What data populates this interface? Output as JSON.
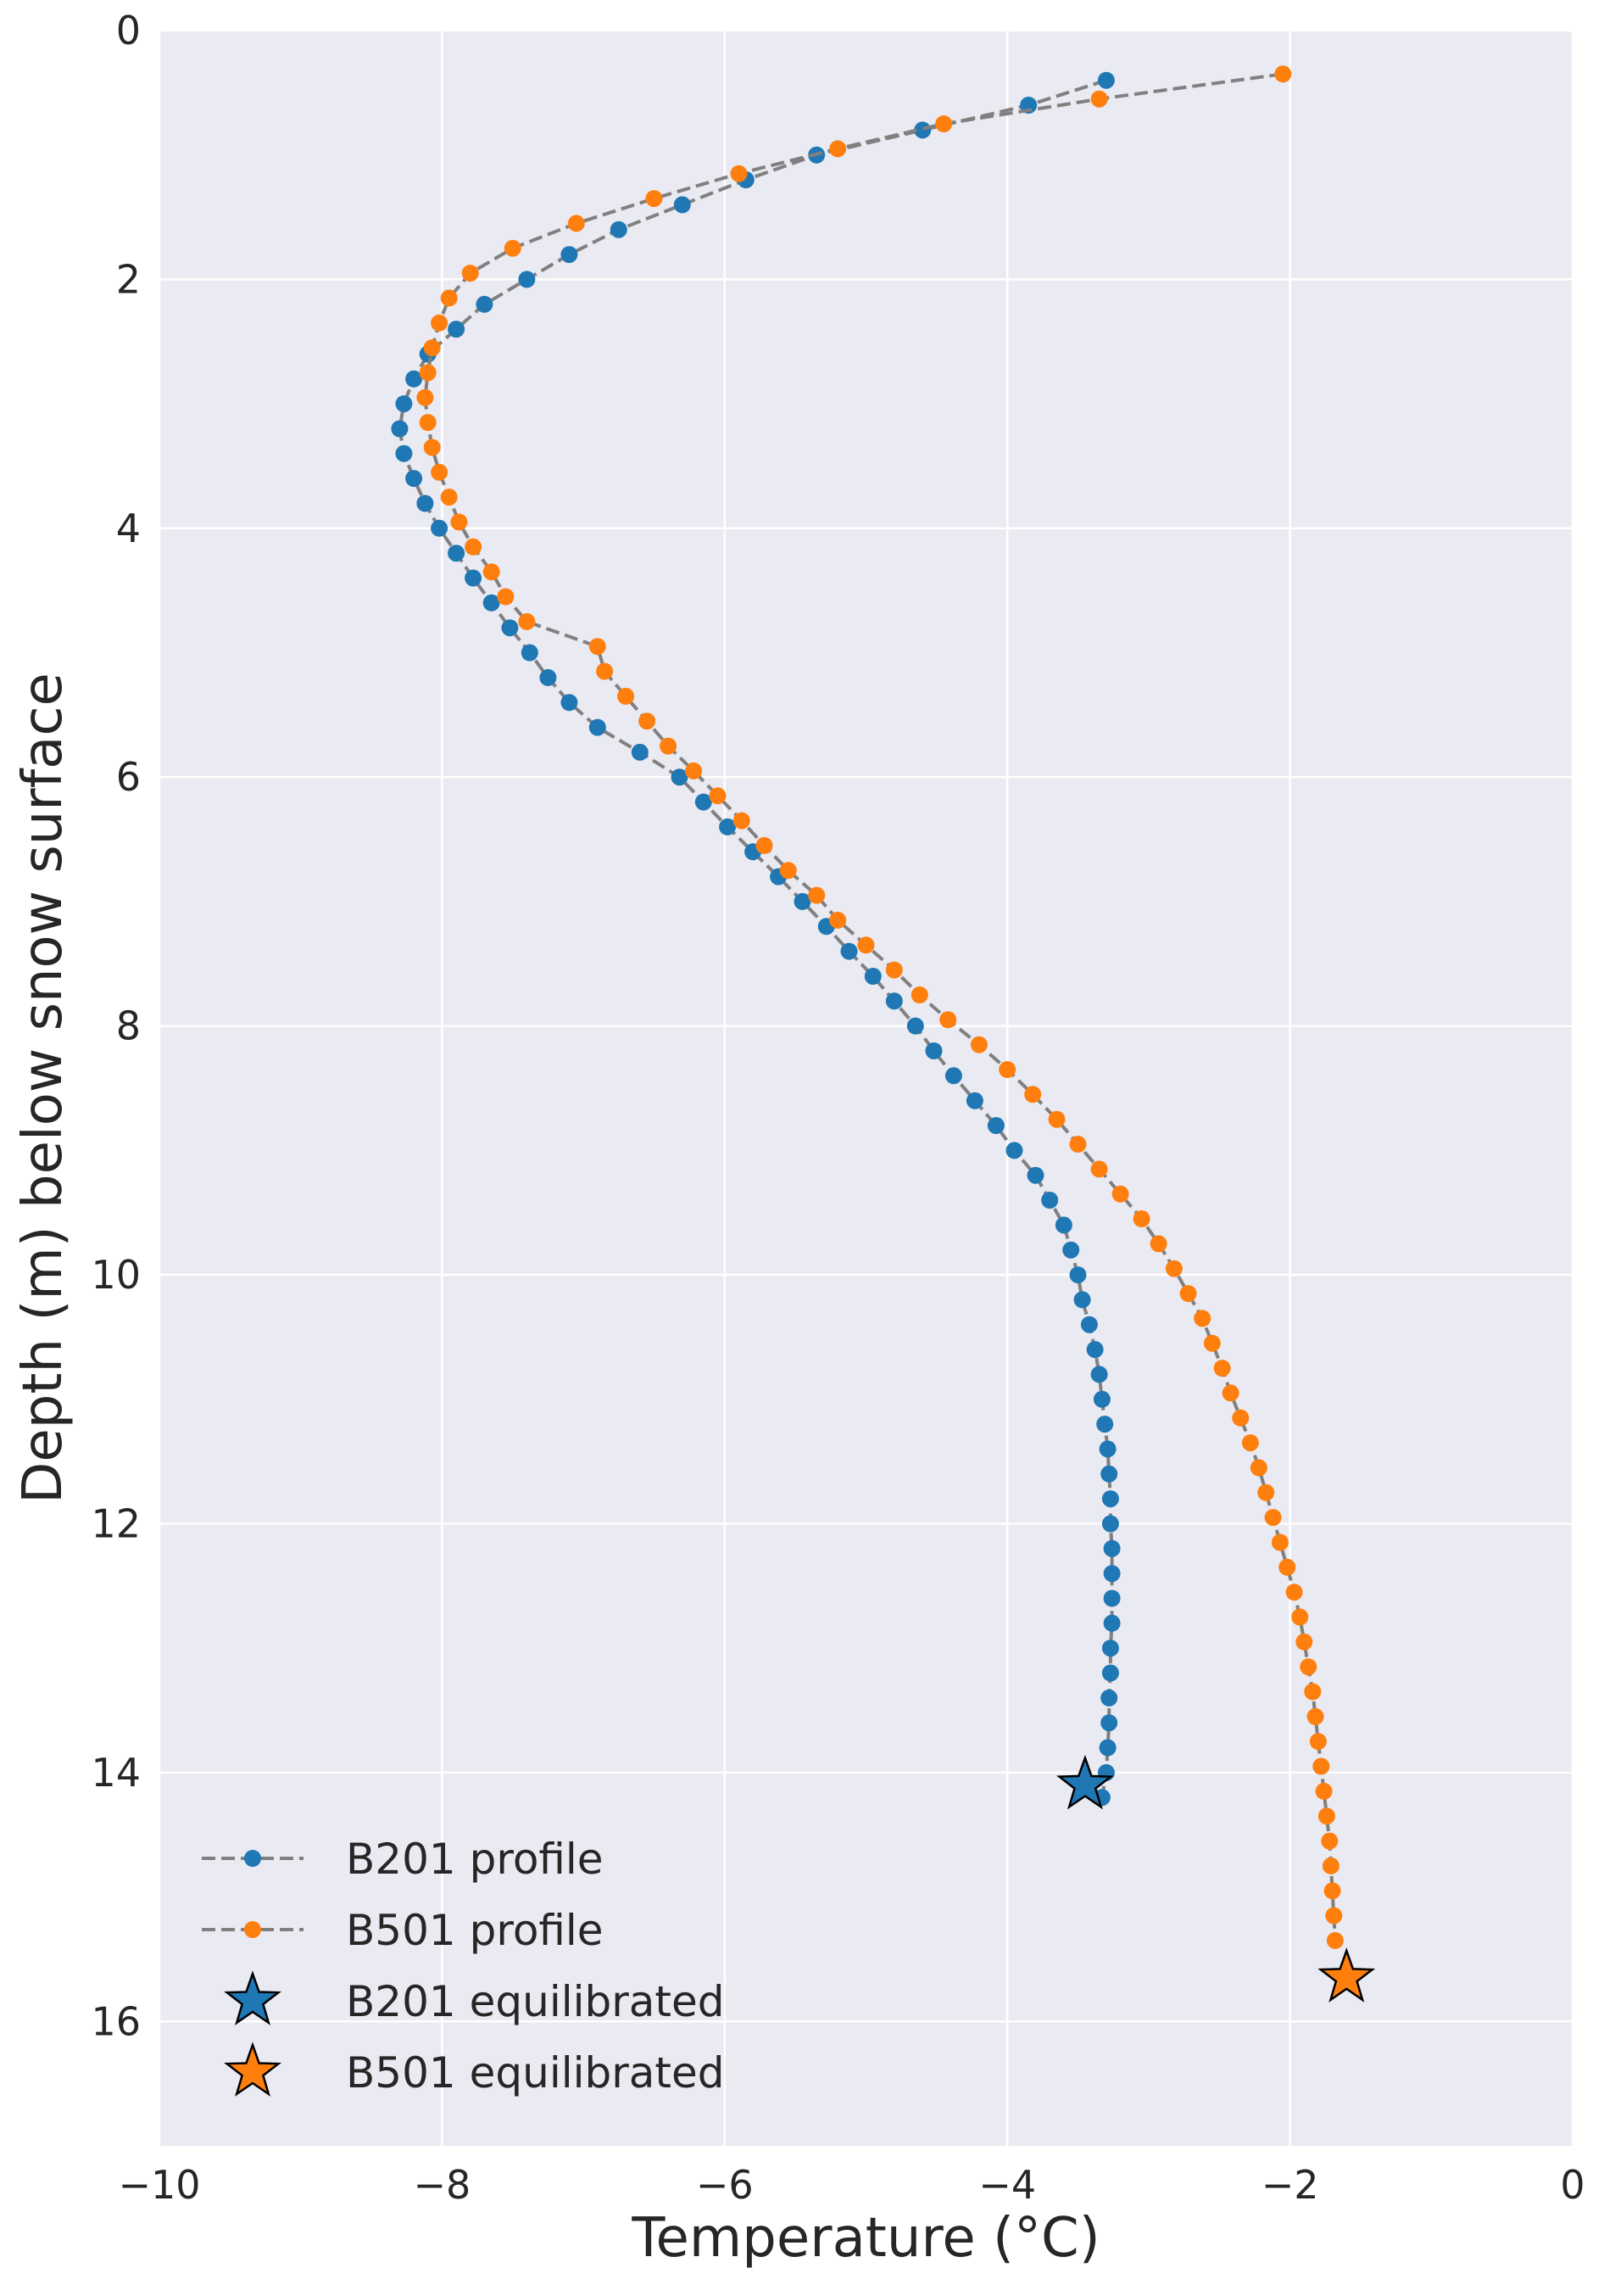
{
  "chart_data": {
    "type": "line",
    "title": "",
    "xlabel": "Temperature (°C)",
    "ylabel": "Depth (m) below snow surface",
    "xlim": [
      -10,
      0
    ],
    "ylim": [
      17,
      0
    ],
    "y_inverted": true,
    "grid": true,
    "legend_position": "lower-left",
    "x_ticks": [
      "−10",
      "−8",
      "−6",
      "−4",
      "−2",
      "0"
    ],
    "x_tick_values": [
      -10,
      -8,
      -6,
      -4,
      -2,
      0
    ],
    "y_ticks": [
      "0",
      "2",
      "4",
      "6",
      "8",
      "10",
      "12",
      "14",
      "16"
    ],
    "y_tick_values": [
      0,
      2,
      4,
      6,
      8,
      10,
      12,
      14,
      16
    ],
    "colors": {
      "background": "#eaeaf2",
      "grid": "#ffffff",
      "line": "#808080",
      "b201": "#1f77b4",
      "b501": "#ff7f0e",
      "star_edge": "#000000"
    },
    "series": [
      {
        "name": "B201 profile",
        "color": "#1f77b4",
        "line_style": "dashed",
        "marker": "circle",
        "points": [
          [
            -3.3,
            0.4
          ],
          [
            -3.85,
            0.6
          ],
          [
            -4.6,
            0.8
          ],
          [
            -5.35,
            1.0
          ],
          [
            -5.85,
            1.2
          ],
          [
            -6.3,
            1.4
          ],
          [
            -6.75,
            1.6
          ],
          [
            -7.1,
            1.8
          ],
          [
            -7.4,
            2.0
          ],
          [
            -7.7,
            2.2
          ],
          [
            -7.9,
            2.4
          ],
          [
            -8.1,
            2.6
          ],
          [
            -8.2,
            2.8
          ],
          [
            -8.27,
            3.0
          ],
          [
            -8.3,
            3.2
          ],
          [
            -8.27,
            3.4
          ],
          [
            -8.2,
            3.6
          ],
          [
            -8.12,
            3.8
          ],
          [
            -8.02,
            4.0
          ],
          [
            -7.9,
            4.2
          ],
          [
            -7.78,
            4.4
          ],
          [
            -7.65,
            4.6
          ],
          [
            -7.52,
            4.8
          ],
          [
            -7.38,
            5.0
          ],
          [
            -7.25,
            5.2
          ],
          [
            -7.1,
            5.4
          ],
          [
            -6.9,
            5.6
          ],
          [
            -6.6,
            5.8
          ],
          [
            -6.32,
            6.0
          ],
          [
            -6.15,
            6.2
          ],
          [
            -5.98,
            6.4
          ],
          [
            -5.8,
            6.6
          ],
          [
            -5.62,
            6.8
          ],
          [
            -5.45,
            7.0
          ],
          [
            -5.28,
            7.2
          ],
          [
            -5.12,
            7.4
          ],
          [
            -4.95,
            7.6
          ],
          [
            -4.8,
            7.8
          ],
          [
            -4.65,
            8.0
          ],
          [
            -4.52,
            8.2
          ],
          [
            -4.38,
            8.4
          ],
          [
            -4.23,
            8.6
          ],
          [
            -4.08,
            8.8
          ],
          [
            -3.95,
            9.0
          ],
          [
            -3.8,
            9.2
          ],
          [
            -3.7,
            9.4
          ],
          [
            -3.6,
            9.6
          ],
          [
            -3.55,
            9.8
          ],
          [
            -3.5,
            10.0
          ],
          [
            -3.47,
            10.2
          ],
          [
            -3.42,
            10.4
          ],
          [
            -3.38,
            10.6
          ],
          [
            -3.35,
            10.8
          ],
          [
            -3.33,
            11.0
          ],
          [
            -3.31,
            11.2
          ],
          [
            -3.29,
            11.4
          ],
          [
            -3.28,
            11.6
          ],
          [
            -3.27,
            11.8
          ],
          [
            -3.27,
            12.0
          ],
          [
            -3.26,
            12.2
          ],
          [
            -3.26,
            12.4
          ],
          [
            -3.26,
            12.6
          ],
          [
            -3.26,
            12.8
          ],
          [
            -3.27,
            13.0
          ],
          [
            -3.27,
            13.2
          ],
          [
            -3.28,
            13.4
          ],
          [
            -3.28,
            13.6
          ],
          [
            -3.29,
            13.8
          ],
          [
            -3.3,
            14.0
          ],
          [
            -3.33,
            14.2
          ]
        ]
      },
      {
        "name": "B501 profile",
        "color": "#ff7f0e",
        "line_style": "dashed",
        "marker": "circle",
        "points": [
          [
            -2.05,
            0.35
          ],
          [
            -3.35,
            0.55
          ],
          [
            -4.45,
            0.75
          ],
          [
            -5.2,
            0.95
          ],
          [
            -5.9,
            1.15
          ],
          [
            -6.5,
            1.35
          ],
          [
            -7.05,
            1.55
          ],
          [
            -7.5,
            1.75
          ],
          [
            -7.8,
            1.95
          ],
          [
            -7.95,
            2.15
          ],
          [
            -8.02,
            2.35
          ],
          [
            -8.07,
            2.55
          ],
          [
            -8.1,
            2.75
          ],
          [
            -8.12,
            2.95
          ],
          [
            -8.1,
            3.15
          ],
          [
            -8.07,
            3.35
          ],
          [
            -8.02,
            3.55
          ],
          [
            -7.95,
            3.75
          ],
          [
            -7.88,
            3.95
          ],
          [
            -7.78,
            4.15
          ],
          [
            -7.65,
            4.35
          ],
          [
            -7.55,
            4.55
          ],
          [
            -7.4,
            4.75
          ],
          [
            -6.9,
            4.95
          ],
          [
            -6.85,
            5.15
          ],
          [
            -6.7,
            5.35
          ],
          [
            -6.55,
            5.55
          ],
          [
            -6.4,
            5.75
          ],
          [
            -6.22,
            5.95
          ],
          [
            -6.05,
            6.15
          ],
          [
            -5.88,
            6.35
          ],
          [
            -5.72,
            6.55
          ],
          [
            -5.55,
            6.75
          ],
          [
            -5.35,
            6.95
          ],
          [
            -5.2,
            7.15
          ],
          [
            -5.0,
            7.35
          ],
          [
            -4.8,
            7.55
          ],
          [
            -4.62,
            7.75
          ],
          [
            -4.42,
            7.95
          ],
          [
            -4.2,
            8.15
          ],
          [
            -4.0,
            8.35
          ],
          [
            -3.82,
            8.55
          ],
          [
            -3.65,
            8.75
          ],
          [
            -3.5,
            8.95
          ],
          [
            -3.35,
            9.15
          ],
          [
            -3.2,
            9.35
          ],
          [
            -3.05,
            9.55
          ],
          [
            -2.93,
            9.75
          ],
          [
            -2.82,
            9.95
          ],
          [
            -2.72,
            10.15
          ],
          [
            -2.62,
            10.35
          ],
          [
            -2.55,
            10.55
          ],
          [
            -2.48,
            10.75
          ],
          [
            -2.42,
            10.95
          ],
          [
            -2.35,
            11.15
          ],
          [
            -2.28,
            11.35
          ],
          [
            -2.22,
            11.55
          ],
          [
            -2.17,
            11.75
          ],
          [
            -2.12,
            11.95
          ],
          [
            -2.07,
            12.15
          ],
          [
            -2.02,
            12.35
          ],
          [
            -1.97,
            12.55
          ],
          [
            -1.93,
            12.75
          ],
          [
            -1.9,
            12.95
          ],
          [
            -1.87,
            13.15
          ],
          [
            -1.84,
            13.35
          ],
          [
            -1.82,
            13.55
          ],
          [
            -1.8,
            13.75
          ],
          [
            -1.78,
            13.95
          ],
          [
            -1.76,
            14.15
          ],
          [
            -1.74,
            14.35
          ],
          [
            -1.72,
            14.55
          ],
          [
            -1.71,
            14.75
          ],
          [
            -1.7,
            14.95
          ],
          [
            -1.69,
            15.15
          ],
          [
            -1.68,
            15.35
          ]
        ]
      }
    ],
    "markers": [
      {
        "name": "B201 equilibrated",
        "color": "#1f77b4",
        "shape": "star",
        "x": -3.45,
        "y": 14.1
      },
      {
        "name": "B501 equilibrated",
        "color": "#ff7f0e",
        "shape": "star",
        "x": -1.6,
        "y": 15.65
      }
    ]
  }
}
